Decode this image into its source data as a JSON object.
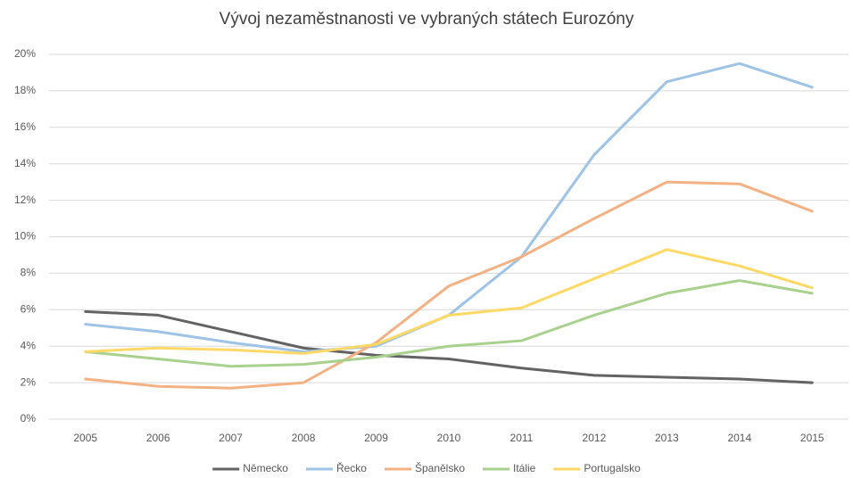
{
  "chart_data": {
    "type": "line",
    "title": "Vývoj nezaměstnanosti ve vybraných státech Eurozóny",
    "categories": [
      "2005",
      "2006",
      "2007",
      "2008",
      "2009",
      "2010",
      "2011",
      "2012",
      "2013",
      "2014",
      "2015"
    ],
    "series": [
      {
        "name": "Německo",
        "color": "#636363",
        "values": [
          5.9,
          5.7,
          4.8,
          3.9,
          3.5,
          3.3,
          2.8,
          2.4,
          2.3,
          2.2,
          2.0
        ]
      },
      {
        "name": "Řecko",
        "color": "#9dc3e6",
        "values": [
          5.2,
          4.8,
          4.2,
          3.7,
          4.0,
          5.7,
          8.9,
          14.5,
          18.5,
          19.5,
          18.2
        ]
      },
      {
        "name": "Španělsko",
        "color": "#f4b183",
        "values": [
          2.2,
          1.8,
          1.7,
          2.0,
          4.2,
          7.3,
          8.9,
          11.0,
          13.0,
          12.9,
          11.4
        ]
      },
      {
        "name": "Itálie",
        "color": "#a9d18e",
        "values": [
          3.7,
          3.3,
          2.9,
          3.0,
          3.4,
          4.0,
          4.3,
          5.7,
          6.9,
          7.6,
          6.9
        ]
      },
      {
        "name": "Portugalsko",
        "color": "#ffd966",
        "values": [
          3.7,
          3.9,
          3.8,
          3.6,
          4.1,
          5.7,
          6.1,
          7.7,
          9.3,
          8.4,
          7.2
        ]
      }
    ],
    "ylim": [
      0,
      20
    ],
    "yticks": [
      {
        "value": 0,
        "label": "0%"
      },
      {
        "value": 2,
        "label": "2%"
      },
      {
        "value": 4,
        "label": "4%"
      },
      {
        "value": 6,
        "label": "6%"
      },
      {
        "value": 8,
        "label": "8%"
      },
      {
        "value": 10,
        "label": "10%"
      },
      {
        "value": 12,
        "label": "12%"
      },
      {
        "value": 14,
        "label": "14%"
      },
      {
        "value": 16,
        "label": "16%"
      },
      {
        "value": 18,
        "label": "18%"
      },
      {
        "value": 20,
        "label": "20%"
      }
    ],
    "grid": true,
    "legend": "bottom"
  }
}
